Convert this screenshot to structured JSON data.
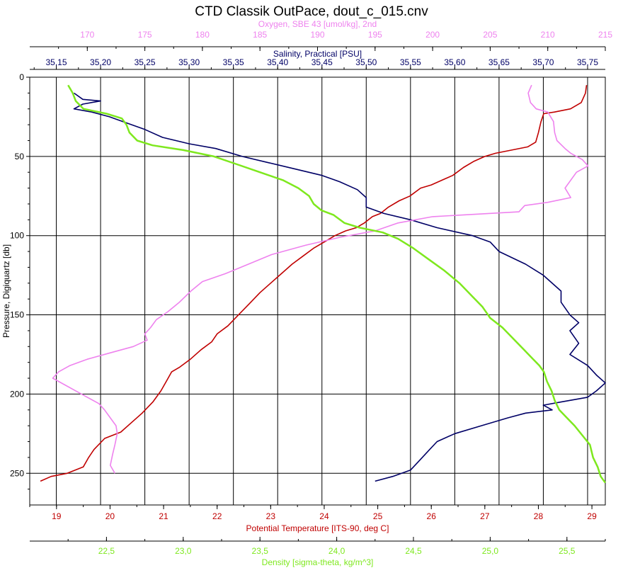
{
  "title": "CTD Classik OutPace, dout_c_015.cnv",
  "colors": {
    "temperature": "#c00000",
    "salinity": "#000066",
    "oxygen": "#ee82ee",
    "density": "#7ee81e",
    "grid": "#000000"
  },
  "chart_data": {
    "type": "line",
    "title": "CTD Classik OutPace, dout_c_015.cnv",
    "grid": true,
    "y_axis": {
      "label": "Pressure, Digiquartz [db]",
      "range": [
        0,
        270
      ],
      "inverted": true,
      "ticks": [
        0,
        50,
        100,
        150,
        200,
        250
      ]
    },
    "x_axes": [
      {
        "key": "temperature",
        "label": "Potential Temperature [ITS-90, deg C]",
        "position": "bottom",
        "range": [
          18.5,
          29.25
        ],
        "ticks": [
          "19",
          "20",
          "21",
          "22",
          "23",
          "24",
          "25",
          "26",
          "27",
          "28",
          "29"
        ],
        "tick_values": [
          19,
          20,
          21,
          22,
          23,
          24,
          25,
          26,
          27,
          28,
          29
        ]
      },
      {
        "key": "density",
        "label": "Density [sigma-theta, kg/m^3]",
        "position": "bottom-2",
        "range": [
          22.0,
          25.75
        ],
        "ticks": [
          "22,5",
          "23,0",
          "23,5",
          "24,0",
          "24,5",
          "25,0",
          "25,5"
        ],
        "tick_values": [
          22.5,
          23.0,
          23.5,
          24.0,
          24.5,
          25.0,
          25.5
        ]
      },
      {
        "key": "salinity",
        "label": "Salinity, Practical [PSU]",
        "position": "top",
        "range": [
          35.12,
          35.77
        ],
        "ticks": [
          "35,15",
          "35,20",
          "35,25",
          "35,30",
          "35,35",
          "35,40",
          "35,45",
          "35,50",
          "35,55",
          "35,60",
          "35,65",
          "35,70",
          "35,75"
        ],
        "tick_values": [
          35.15,
          35.2,
          35.25,
          35.3,
          35.35,
          35.4,
          35.45,
          35.5,
          35.55,
          35.6,
          35.65,
          35.7,
          35.75
        ]
      },
      {
        "key": "oxygen",
        "label": "Oxygen, SBE 43 [umol/kg], 2nd",
        "position": "top-2",
        "range": [
          165,
          215
        ],
        "ticks": [
          "170",
          "175",
          "180",
          "185",
          "190",
          "195",
          "200",
          "205",
          "210",
          "215"
        ],
        "tick_values": [
          170,
          175,
          180,
          185,
          190,
          195,
          200,
          205,
          210,
          215
        ]
      }
    ],
    "series": [
      {
        "key": "temperature",
        "axis": "temperature",
        "points": [
          [
            28.9,
            5
          ],
          [
            28.88,
            10
          ],
          [
            28.8,
            16
          ],
          [
            28.6,
            20
          ],
          [
            28.3,
            22
          ],
          [
            28.1,
            23
          ],
          [
            28.05,
            28
          ],
          [
            28.0,
            35
          ],
          [
            27.95,
            41
          ],
          [
            27.8,
            44
          ],
          [
            27.5,
            46
          ],
          [
            27.2,
            48
          ],
          [
            27.0,
            50
          ],
          [
            26.8,
            53
          ],
          [
            26.6,
            57
          ],
          [
            26.4,
            62
          ],
          [
            26.2,
            65
          ],
          [
            26.0,
            68
          ],
          [
            25.8,
            70
          ],
          [
            25.6,
            75
          ],
          [
            25.4,
            78
          ],
          [
            25.2,
            82
          ],
          [
            25.05,
            86
          ],
          [
            24.9,
            88
          ],
          [
            24.75,
            92
          ],
          [
            24.6,
            95
          ],
          [
            24.4,
            97
          ],
          [
            24.2,
            100
          ],
          [
            24.0,
            104
          ],
          [
            23.8,
            108
          ],
          [
            23.6,
            113
          ],
          [
            23.4,
            118
          ],
          [
            23.2,
            124
          ],
          [
            23.0,
            130
          ],
          [
            22.8,
            136
          ],
          [
            22.6,
            143
          ],
          [
            22.4,
            150
          ],
          [
            22.2,
            157
          ],
          [
            22.0,
            162
          ],
          [
            21.9,
            167
          ],
          [
            21.7,
            172
          ],
          [
            21.5,
            178
          ],
          [
            21.3,
            183
          ],
          [
            21.15,
            186
          ],
          [
            21.05,
            192
          ],
          [
            20.95,
            198
          ],
          [
            20.8,
            205
          ],
          [
            20.6,
            212
          ],
          [
            20.4,
            218
          ],
          [
            20.2,
            224
          ],
          [
            19.9,
            228
          ],
          [
            19.7,
            235
          ],
          [
            19.6,
            240
          ],
          [
            19.5,
            246
          ],
          [
            19.2,
            250
          ],
          [
            18.9,
            252
          ],
          [
            18.7,
            255
          ]
        ]
      },
      {
        "key": "salinity",
        "axis": "salinity",
        "points": [
          [
            35.17,
            10
          ],
          [
            35.18,
            14
          ],
          [
            35.2,
            15
          ],
          [
            35.18,
            17
          ],
          [
            35.17,
            20
          ],
          [
            35.19,
            22
          ],
          [
            35.21,
            25
          ],
          [
            35.23,
            29
          ],
          [
            35.25,
            33
          ],
          [
            35.27,
            38
          ],
          [
            35.3,
            42
          ],
          [
            35.33,
            45
          ],
          [
            35.36,
            50
          ],
          [
            35.39,
            54
          ],
          [
            35.42,
            58
          ],
          [
            35.45,
            62
          ],
          [
            35.47,
            66
          ],
          [
            35.49,
            71
          ],
          [
            35.5,
            76
          ],
          [
            35.5,
            82
          ],
          [
            35.52,
            86
          ],
          [
            35.55,
            90
          ],
          [
            35.58,
            95
          ],
          [
            35.62,
            100
          ],
          [
            35.64,
            104
          ],
          [
            35.65,
            110
          ],
          [
            35.68,
            118
          ],
          [
            35.7,
            125
          ],
          [
            35.72,
            135
          ],
          [
            35.72,
            142
          ],
          [
            35.73,
            150
          ],
          [
            35.74,
            155
          ],
          [
            35.73,
            160
          ],
          [
            35.74,
            168
          ],
          [
            35.73,
            175
          ],
          [
            35.75,
            182
          ],
          [
            35.76,
            188
          ],
          [
            35.77,
            193
          ],
          [
            35.76,
            198
          ],
          [
            35.75,
            202
          ],
          [
            35.72,
            205
          ],
          [
            35.7,
            207
          ],
          [
            35.71,
            210
          ],
          [
            35.68,
            212
          ],
          [
            35.66,
            215
          ],
          [
            35.63,
            220
          ],
          [
            35.6,
            225
          ],
          [
            35.58,
            230
          ],
          [
            35.57,
            236
          ],
          [
            35.56,
            242
          ],
          [
            35.55,
            248
          ],
          [
            35.53,
            252
          ],
          [
            35.51,
            255
          ]
        ]
      },
      {
        "key": "oxygen",
        "axis": "oxygen",
        "points": [
          [
            208.6,
            5
          ],
          [
            208.3,
            10
          ],
          [
            208.5,
            16
          ],
          [
            209.0,
            20
          ],
          [
            210.0,
            22
          ],
          [
            210.5,
            28
          ],
          [
            210.6,
            35
          ],
          [
            210.8,
            40
          ],
          [
            211.5,
            45
          ],
          [
            212.0,
            48
          ],
          [
            213.0,
            52
          ],
          [
            213.5,
            56
          ],
          [
            212.5,
            60
          ],
          [
            212.0,
            65
          ],
          [
            211.5,
            70
          ],
          [
            212.0,
            76
          ],
          [
            210.0,
            79
          ],
          [
            208.0,
            81
          ],
          [
            207.5,
            85
          ],
          [
            200.0,
            88
          ],
          [
            197.0,
            92
          ],
          [
            195.0,
            97
          ],
          [
            192.0,
            101
          ],
          [
            189.0,
            106
          ],
          [
            186.0,
            112
          ],
          [
            184.0,
            118
          ],
          [
            182.0,
            124
          ],
          [
            180.0,
            129
          ],
          [
            179.0,
            135
          ],
          [
            178.0,
            142
          ],
          [
            177.0,
            148
          ],
          [
            176.0,
            153
          ],
          [
            175.5,
            158
          ],
          [
            175.0,
            162
          ],
          [
            175.2,
            166
          ],
          [
            174.0,
            170
          ],
          [
            172.0,
            174
          ],
          [
            170.0,
            178
          ],
          [
            168.5,
            182
          ],
          [
            167.5,
            186
          ],
          [
            167.0,
            190
          ],
          [
            168.0,
            194
          ],
          [
            169.0,
            198
          ],
          [
            170.0,
            202
          ],
          [
            171.0,
            206
          ],
          [
            171.5,
            210
          ],
          [
            172.0,
            215
          ],
          [
            172.5,
            220
          ],
          [
            172.6,
            225
          ],
          [
            172.4,
            232
          ],
          [
            172.2,
            238
          ],
          [
            172.0,
            245
          ],
          [
            172.4,
            250
          ]
        ]
      },
      {
        "key": "density",
        "axis": "density",
        "points": [
          [
            22.25,
            5
          ],
          [
            22.28,
            10
          ],
          [
            22.3,
            15
          ],
          [
            22.35,
            20
          ],
          [
            22.5,
            23
          ],
          [
            22.6,
            26
          ],
          [
            22.63,
            30
          ],
          [
            22.65,
            35
          ],
          [
            22.7,
            40
          ],
          [
            22.8,
            43
          ],
          [
            23.0,
            46
          ],
          [
            23.2,
            50
          ],
          [
            23.35,
            55
          ],
          [
            23.5,
            60
          ],
          [
            23.65,
            65
          ],
          [
            23.75,
            70
          ],
          [
            23.82,
            75
          ],
          [
            23.85,
            80
          ],
          [
            23.9,
            84
          ],
          [
            23.98,
            87
          ],
          [
            24.05,
            92
          ],
          [
            24.15,
            95
          ],
          [
            24.3,
            98
          ],
          [
            24.4,
            102
          ],
          [
            24.5,
            108
          ],
          [
            24.6,
            115
          ],
          [
            24.7,
            122
          ],
          [
            24.8,
            130
          ],
          [
            24.88,
            138
          ],
          [
            24.95,
            145
          ],
          [
            25.0,
            152
          ],
          [
            25.08,
            158
          ],
          [
            25.15,
            165
          ],
          [
            25.22,
            172
          ],
          [
            25.28,
            178
          ],
          [
            25.32,
            182
          ],
          [
            25.35,
            186
          ],
          [
            25.37,
            192
          ],
          [
            25.4,
            198
          ],
          [
            25.42,
            204
          ],
          [
            25.45,
            210
          ],
          [
            25.5,
            215
          ],
          [
            25.55,
            220
          ],
          [
            25.6,
            226
          ],
          [
            25.65,
            232
          ],
          [
            25.67,
            240
          ],
          [
            25.7,
            246
          ],
          [
            25.72,
            252
          ],
          [
            25.75,
            256
          ]
        ]
      }
    ]
  }
}
